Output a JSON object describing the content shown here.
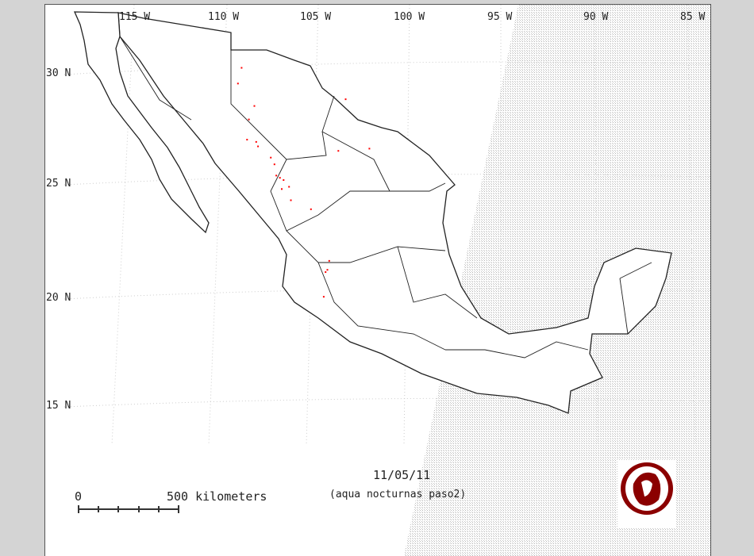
{
  "map": {
    "longitude_labels": [
      "115 W",
      "110 W",
      "105 W",
      "100 W",
      "95 W",
      "90 W",
      "85 W"
    ],
    "latitude_labels": [
      "30 N",
      "25 N",
      "20 N",
      "15 N"
    ],
    "date": "11/05/11",
    "subtitle": "(aqua nocturnas paso2)",
    "scale": {
      "start_label": "0",
      "end_label": "500 kilometers"
    },
    "logo_text": "CONABIO",
    "colors": {
      "hotspot": "#ff0000",
      "coast": "#222222",
      "logo": "#8b0000",
      "background": "#d4d4d4"
    },
    "hotspots": [
      [
        -109.2,
        30.3
      ],
      [
        -109.4,
        29.6
      ],
      [
        -103.5,
        28.9
      ],
      [
        -108.5,
        28.6
      ],
      [
        -108.8,
        28.0
      ],
      [
        -108.9,
        27.1
      ],
      [
        -108.4,
        27.0
      ],
      [
        -103.9,
        26.6
      ],
      [
        -102.2,
        26.7
      ],
      [
        -108.3,
        26.8
      ],
      [
        -107.6,
        26.3
      ],
      [
        -107.4,
        26.0
      ],
      [
        -107.3,
        25.5
      ],
      [
        -107.1,
        25.4
      ],
      [
        -106.9,
        25.3
      ],
      [
        -106.6,
        25.0
      ],
      [
        -107.0,
        24.9
      ],
      [
        -106.5,
        24.4
      ],
      [
        -105.4,
        24.0
      ],
      [
        -104.4,
        21.7
      ],
      [
        -104.5,
        21.3
      ],
      [
        -104.6,
        21.2
      ],
      [
        -104.7,
        20.1
      ]
    ]
  }
}
